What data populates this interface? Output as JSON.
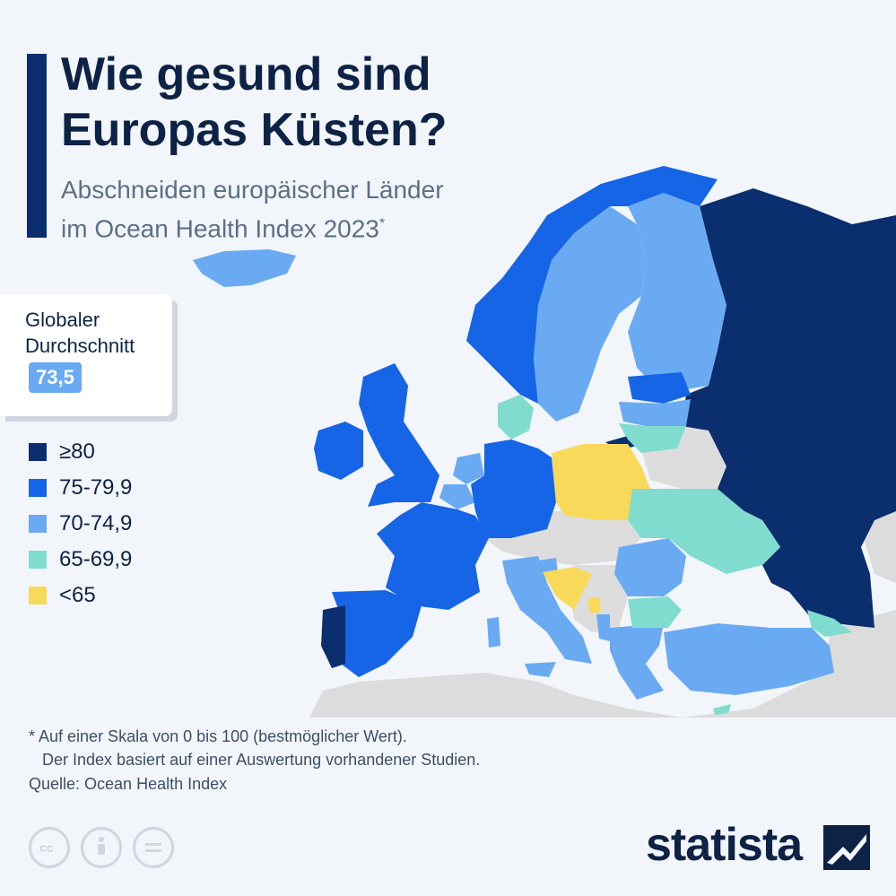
{
  "header": {
    "title_line1": "Wie gesund sind",
    "title_line2": "Europas Küsten?",
    "subtitle_line1": "Abschneiden europäischer Länder",
    "subtitle_line2": "im Ocean Health Index 2023",
    "subtitle_mark": "*"
  },
  "global_average": {
    "label_line1": "Globaler",
    "label_line2": "Durchschnitt",
    "value": "73,5"
  },
  "legend": [
    {
      "label": "≥80",
      "color": "#0b2f6e"
    },
    {
      "label": "75-79,9",
      "color": "#1565e6"
    },
    {
      "label": "70-74,9",
      "color": "#6aaaf2"
    },
    {
      "label": "65-69,9",
      "color": "#7fdccf"
    },
    {
      "label": "<65",
      "color": "#f9d95a"
    }
  ],
  "map": {
    "no_data_color": "#dcdcdc",
    "sea_color": "#f2f5f9",
    "countries": [
      {
        "name": "Island",
        "category": "70-74,9"
      },
      {
        "name": "Norwegen",
        "category": "75-79,9"
      },
      {
        "name": "Schweden",
        "category": "70-74,9"
      },
      {
        "name": "Finnland",
        "category": "70-74,9"
      },
      {
        "name": "Russland",
        "category": "≥80"
      },
      {
        "name": "Estland",
        "category": "75-79,9"
      },
      {
        "name": "Lettland",
        "category": "70-74,9"
      },
      {
        "name": "Litauen",
        "category": "65-69,9"
      },
      {
        "name": "Dänemark",
        "category": "65-69,9"
      },
      {
        "name": "Vereinigtes Königreich",
        "category": "75-79,9"
      },
      {
        "name": "Irland",
        "category": "75-79,9"
      },
      {
        "name": "Niederlande",
        "category": "70-74,9"
      },
      {
        "name": "Belgien",
        "category": "70-74,9"
      },
      {
        "name": "Deutschland",
        "category": "75-79,9"
      },
      {
        "name": "Polen",
        "category": "<65"
      },
      {
        "name": "Frankreich",
        "category": "75-79,9"
      },
      {
        "name": "Spanien",
        "category": "75-79,9"
      },
      {
        "name": "Portugal",
        "category": "≥80"
      },
      {
        "name": "Italien",
        "category": "70-74,9"
      },
      {
        "name": "Slowenien",
        "category": "70-74,9"
      },
      {
        "name": "Kroatien",
        "category": "<65"
      },
      {
        "name": "Montenegro",
        "category": "<65"
      },
      {
        "name": "Albanien",
        "category": "70-74,9"
      },
      {
        "name": "Griechenland",
        "category": "70-74,9"
      },
      {
        "name": "Bulgarien",
        "category": "65-69,9"
      },
      {
        "name": "Rumänien",
        "category": "70-74,9"
      },
      {
        "name": "Ukraine",
        "category": "65-69,9"
      },
      {
        "name": "Georgien",
        "category": "65-69,9"
      },
      {
        "name": "Türkei",
        "category": "70-74,9"
      },
      {
        "name": "Zypern",
        "category": "65-69,9"
      }
    ]
  },
  "footer": {
    "note_line1": "* Auf einer Skala von 0 bis 100 (bestmöglicher Wert).",
    "note_line2": "Der Index basiert auf einer Auswertung vorhandener Studien.",
    "source": "Quelle: Ocean Health Index",
    "brand": "statista",
    "icons": [
      "cc-icon",
      "by-icon",
      "nd-icon"
    ]
  }
}
